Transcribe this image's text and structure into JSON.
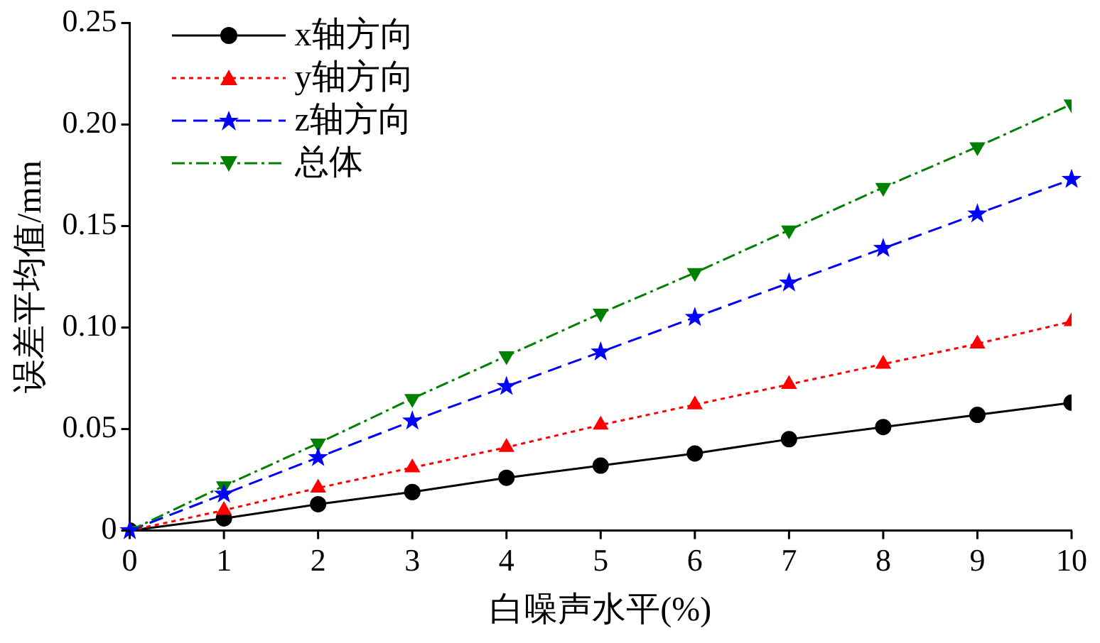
{
  "chart_data": {
    "type": "line",
    "xlabel": "白噪声水平(%)",
    "ylabel": "误差平均值/mm",
    "x": [
      0,
      1,
      2,
      3,
      4,
      5,
      6,
      7,
      8,
      9,
      10
    ],
    "series": [
      {
        "name": "x轴方向",
        "color": "#000000",
        "marker": "circle",
        "line_style": "solid",
        "values": [
          0,
          0.006,
          0.013,
          0.019,
          0.026,
          0.032,
          0.038,
          0.045,
          0.051,
          0.057,
          0.063
        ]
      },
      {
        "name": "y轴方向",
        "color": "#ff0000",
        "marker": "triangle",
        "line_style": "dotted",
        "values": [
          0,
          0.01,
          0.021,
          0.031,
          0.041,
          0.052,
          0.062,
          0.072,
          0.082,
          0.092,
          0.103
        ]
      },
      {
        "name": "z轴方向",
        "color": "#0000ff",
        "marker": "star",
        "line_style": "dashed",
        "values": [
          0,
          0.018,
          0.036,
          0.054,
          0.071,
          0.088,
          0.105,
          0.122,
          0.139,
          0.156,
          0.173
        ]
      },
      {
        "name": "总体",
        "color": "#008000",
        "marker": "triangle_down",
        "line_style": "dashdot",
        "values": [
          0,
          0.022,
          0.043,
          0.065,
          0.086,
          0.107,
          0.127,
          0.148,
          0.169,
          0.189,
          0.21
        ]
      }
    ],
    "xlim": [
      0,
      10
    ],
    "xticks": [
      0,
      1,
      2,
      3,
      4,
      5,
      6,
      7,
      8,
      9,
      10
    ],
    "ylim": [
      0,
      0.25
    ],
    "yticks": [
      0,
      {
        "value": 0.05,
        "label": "0.05"
      },
      {
        "value": 0.1,
        "label": "0.10"
      },
      {
        "value": 0.15,
        "label": "0.15"
      },
      {
        "value": 0.2,
        "label": "0.20"
      },
      {
        "value": 0.25,
        "label": "0.25"
      }
    ],
    "grid": false,
    "legend": "top left"
  }
}
